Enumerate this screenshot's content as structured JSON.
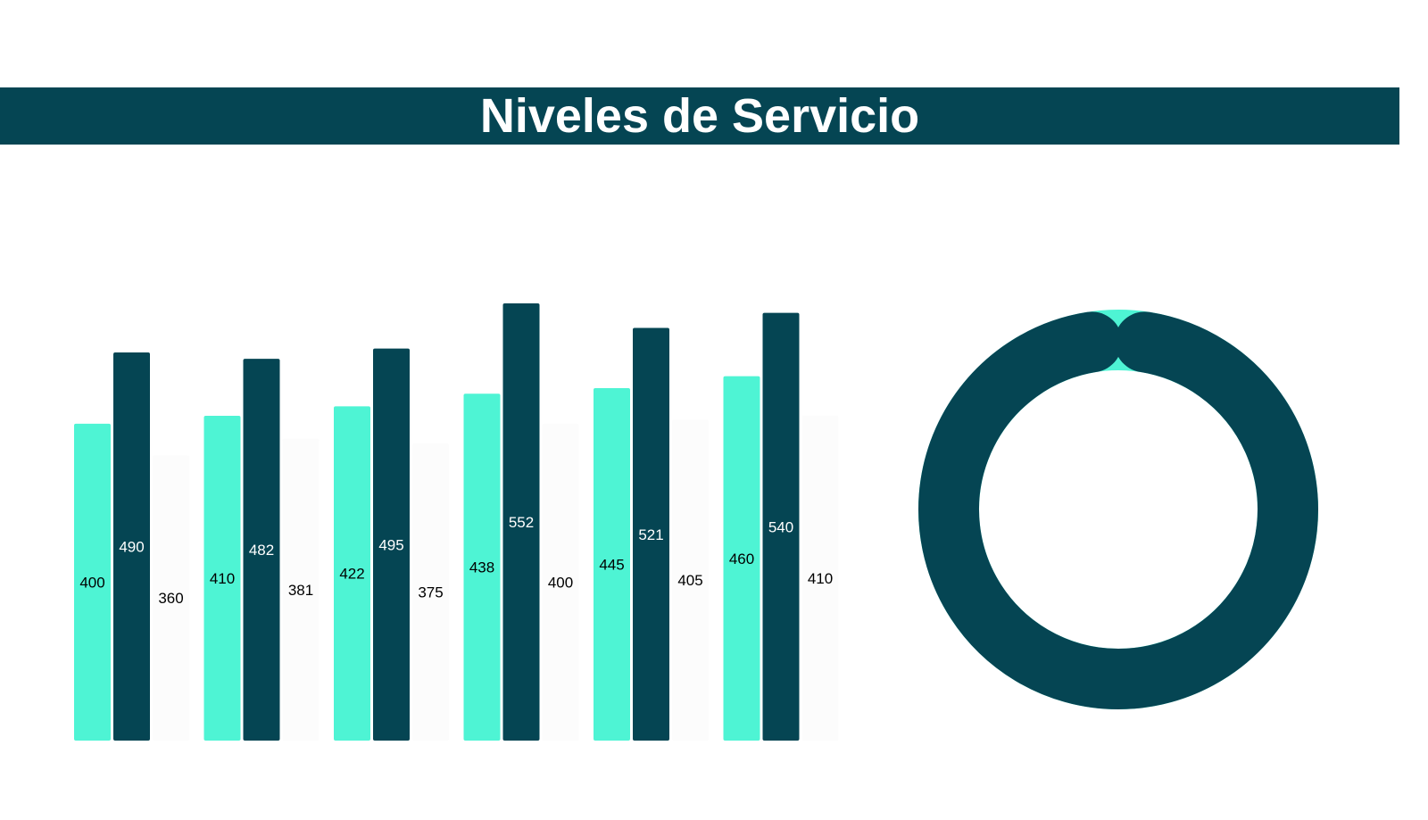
{
  "header": {
    "title": "Niveles de Servicio",
    "background": "#054553",
    "text_color": "#ffffff"
  },
  "chart_data": [
    {
      "type": "bar",
      "categories": [
        "",
        "",
        "",
        "",
        "",
        ""
      ],
      "series": [
        {
          "values": [
            400,
            410,
            422,
            438,
            445,
            460
          ],
          "color": "#4ef4d4",
          "label_color": "#000000"
        },
        {
          "values": [
            490,
            482,
            495,
            552,
            521,
            540
          ],
          "color": "#054553",
          "label_color": "#ffffff"
        },
        {
          "values": [
            360,
            381,
            375,
            400,
            405,
            410
          ],
          "color": "#fcfcfc",
          "label_color": "#000000"
        }
      ],
      "ylim": [
        0,
        552
      ],
      "grid": false,
      "legend": "none",
      "data_labels": true
    },
    {
      "type": "pie",
      "style": "donut",
      "slices": [
        {
          "value": 95,
          "color": "#054553"
        },
        {
          "value": 5,
          "color": "#4ef4d4"
        }
      ],
      "legend": "none"
    }
  ]
}
